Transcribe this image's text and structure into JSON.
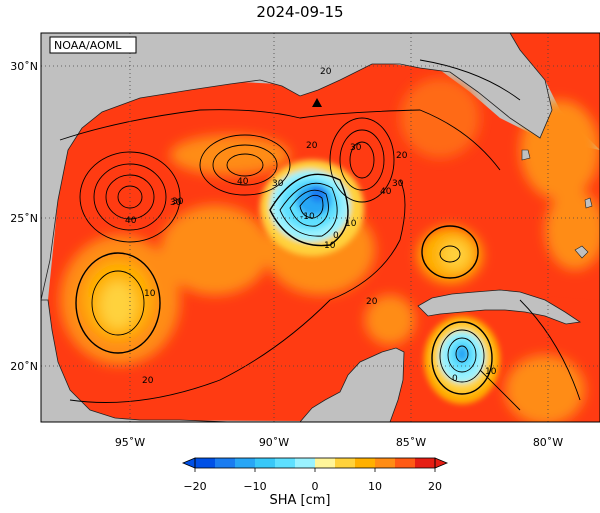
{
  "title": "2024-09-15",
  "credit": "NOAA/AOML",
  "lat_labels": [
    "30˚N",
    "25˚N",
    "20˚N"
  ],
  "lon_labels": [
    "95˚W",
    "90˚W",
    "85˚W",
    "80˚W"
  ],
  "contour_labels": [
    "20",
    "30",
    "40",
    "40",
    "30",
    "20",
    "30",
    "40",
    "-10",
    "10",
    "30",
    "20",
    "20",
    "30",
    "10",
    "10",
    "20",
    "0",
    "10",
    "0"
  ],
  "colorbar": {
    "label": "SHA [cm]",
    "ticks": [
      "−20",
      "−10",
      "0",
      "10",
      "20"
    ],
    "colors": [
      "#0050e6",
      "#1a7cf0",
      "#28a6f5",
      "#38c8f8",
      "#5ee0ff",
      "#9af2ff",
      "#fff59a",
      "#ffd23c",
      "#ffb000",
      "#ff8c14",
      "#ff5a14",
      "#e61e14"
    ]
  },
  "colors": {
    "land": "#c0c0c0",
    "ocean_base": "#ff3b12",
    "grid": "#666666"
  }
}
